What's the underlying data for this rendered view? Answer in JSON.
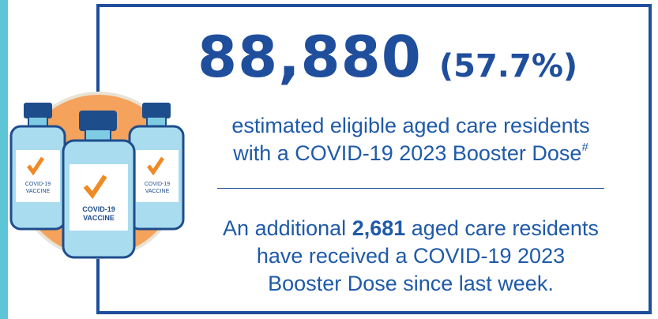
{
  "headline": {
    "count": "88,880",
    "percent": "(57.7%)"
  },
  "description": {
    "lines": [
      "estimated eligible aged care residents",
      "with a COVID-19 2023 Booster Dose"
    ],
    "footnote_mark": "#"
  },
  "update": {
    "lead": "An additional",
    "count": "2,681",
    "rest": "aged care residents",
    "lines": [
      "have received a COVID-19 2023",
      "Booster Dose since last week."
    ]
  },
  "icon": {
    "label": [
      "COVID-19",
      "VACCINE"
    ]
  }
}
